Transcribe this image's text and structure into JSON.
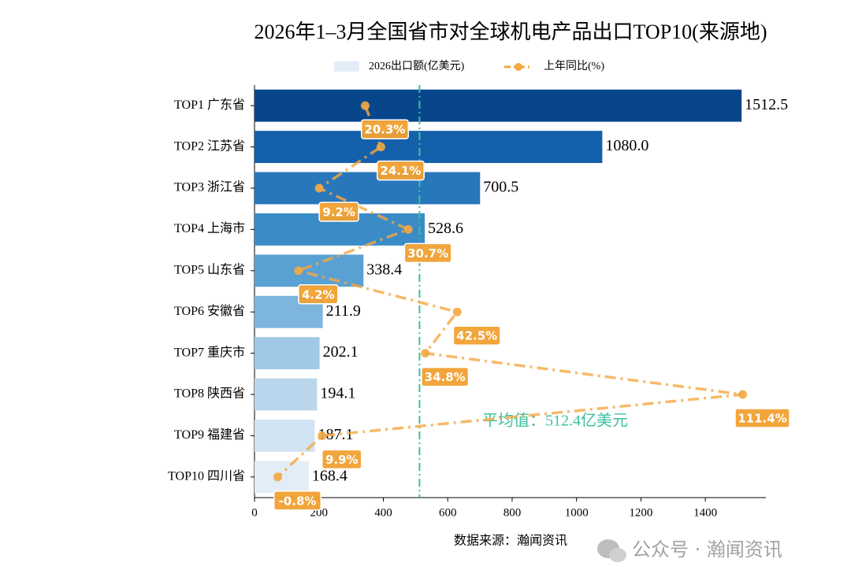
{
  "chart_data": {
    "type": "bar",
    "title": "2026年1–3月全国省市对全球机电产品出口TOP10(来源地)",
    "categories": [
      "TOP1 广东省",
      "TOP2 江苏省",
      "TOP3 浙江省",
      "TOP4 上海市",
      "TOP5 山东省",
      "TOP6 安徽省",
      "TOP7 重庆市",
      "TOP8 陕西省",
      "TOP9 福建省",
      "TOP10 四川省"
    ],
    "series": [
      {
        "name": "2026出口额(亿美元)",
        "type": "barh",
        "colors": [
          "#08468c",
          "#1460ab",
          "#2877bb",
          "#3b8bc6",
          "#5aa1d3",
          "#7db5dd",
          "#9fc9e5",
          "#bad6ec",
          "#d2e3f3",
          "#e3edf8"
        ],
        "values": [
          1512.5,
          1080.0,
          700.5,
          528.6,
          338.4,
          211.9,
          202.1,
          194.1,
          187.1,
          168.4
        ],
        "value_labels": [
          "1512.5",
          "1080.0",
          "700.5",
          "528.6",
          "338.4",
          "211.9",
          "202.1",
          "194.1",
          "187.1",
          "168.4"
        ]
      },
      {
        "name": "上年同比(%)",
        "type": "line",
        "axis": "x2",
        "color": "#f5a742",
        "values": [
          20.3,
          24.1,
          9.2,
          30.7,
          4.2,
          42.5,
          34.8,
          111.4,
          9.9,
          -0.8
        ],
        "value_labels": [
          "20.3%",
          "24.1%",
          "9.2%",
          "30.7%",
          "4.2%",
          "42.5%",
          "34.8%",
          "111.4%",
          "9.9%",
          "-0.8%"
        ]
      }
    ],
    "xlim": [
      0,
      1588
    ],
    "xticks": [
      0,
      200,
      400,
      600,
      800,
      1000,
      1200,
      1400
    ],
    "x2lim": [
      -6.41,
      117.01
    ],
    "average": {
      "value": 512.4,
      "label": "平均值：512.4亿美元",
      "color": "#3cc0a0"
    },
    "source": "数据来源：瀚闻资讯",
    "watermark": "公众号 · 瀚闻资讯"
  }
}
